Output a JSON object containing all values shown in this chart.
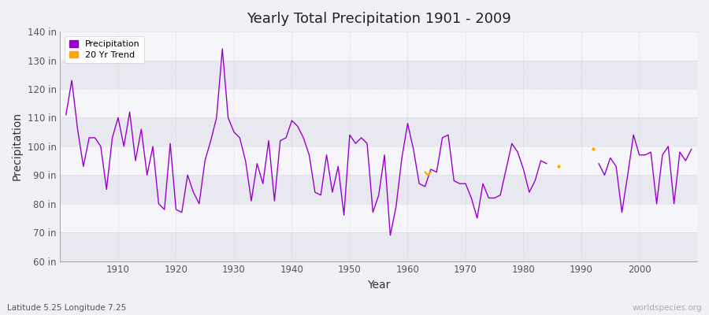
{
  "title": "Yearly Total Precipitation 1901 - 2009",
  "xlabel": "Year",
  "ylabel": "Precipitation",
  "subtitle": "Latitude 5.25 Longitude 7.25",
  "watermark": "worldspecies.org",
  "ylim": [
    60,
    140
  ],
  "yticks": [
    60,
    70,
    80,
    90,
    100,
    110,
    120,
    130,
    140
  ],
  "ytick_labels": [
    "60 in",
    "70 in",
    "80 in",
    "90 in",
    "100 in",
    "110 in",
    "120 in",
    "130 in",
    "140 in"
  ],
  "bg_color": "#f0f0f5",
  "plot_bg_light": "#f5f5fa",
  "plot_bg_dark": "#e8e8f0",
  "line_color": "#9900cc",
  "trend_color": "#ffa500",
  "years": [
    1901,
    1902,
    1903,
    1904,
    1905,
    1906,
    1907,
    1908,
    1909,
    1910,
    1911,
    1912,
    1913,
    1914,
    1915,
    1916,
    1917,
    1918,
    1919,
    1920,
    1921,
    1922,
    1923,
    1924,
    1925,
    1926,
    1927,
    1928,
    1929,
    1930,
    1931,
    1932,
    1933,
    1934,
    1935,
    1936,
    1937,
    1938,
    1939,
    1940,
    1941,
    1942,
    1943,
    1944,
    1945,
    1946,
    1947,
    1948,
    1949,
    1950,
    1951,
    1952,
    1953,
    1954,
    1955,
    1956,
    1957,
    1958,
    1959,
    1960,
    1961,
    1962,
    1963,
    1964,
    1965,
    1966,
    1967,
    1968,
    1969,
    1970,
    1971,
    1972,
    1973,
    1974,
    1975,
    1976,
    1977,
    1978,
    1979,
    1980,
    1981,
    1982,
    1983,
    1984,
    1985,
    1986,
    1987,
    1988,
    1989,
    1990,
    1991,
    1992,
    1993,
    1994,
    1995,
    1996,
    1997,
    1998,
    1999,
    2000,
    2001,
    2002,
    2003,
    2004,
    2005,
    2006,
    2007,
    2008,
    2009
  ],
  "precip": [
    111,
    123,
    106,
    93,
    103,
    103,
    100,
    85,
    103,
    110,
    100,
    112,
    95,
    106,
    90,
    100,
    80,
    78,
    101,
    78,
    77,
    90,
    84,
    80,
    95,
    102,
    110,
    134,
    110,
    105,
    103,
    95,
    81,
    94,
    87,
    102,
    81,
    102,
    103,
    109,
    107,
    103,
    97,
    84,
    83,
    97,
    84,
    93,
    76,
    104,
    101,
    103,
    101,
    77,
    83,
    97,
    69,
    79,
    96,
    108,
    99,
    87,
    86,
    92,
    91,
    103,
    104,
    88,
    87,
    87,
    82,
    75,
    87,
    82,
    82,
    83,
    92,
    101,
    98,
    92,
    84,
    88,
    95,
    94,
    null,
    null,
    null,
    null,
    null,
    null,
    null,
    null,
    94,
    90,
    96,
    93,
    77,
    90,
    104,
    97,
    97,
    98,
    80,
    97,
    100,
    80,
    98,
    95,
    99
  ],
  "trend_years": [
    1963,
    1963.5,
    1964
  ],
  "trend_values": [
    91,
    90,
    91
  ],
  "trend_dot_year": 1986,
  "trend_dot_value": 93,
  "trend_dot2_year": 1992,
  "trend_dot2_value": 99
}
